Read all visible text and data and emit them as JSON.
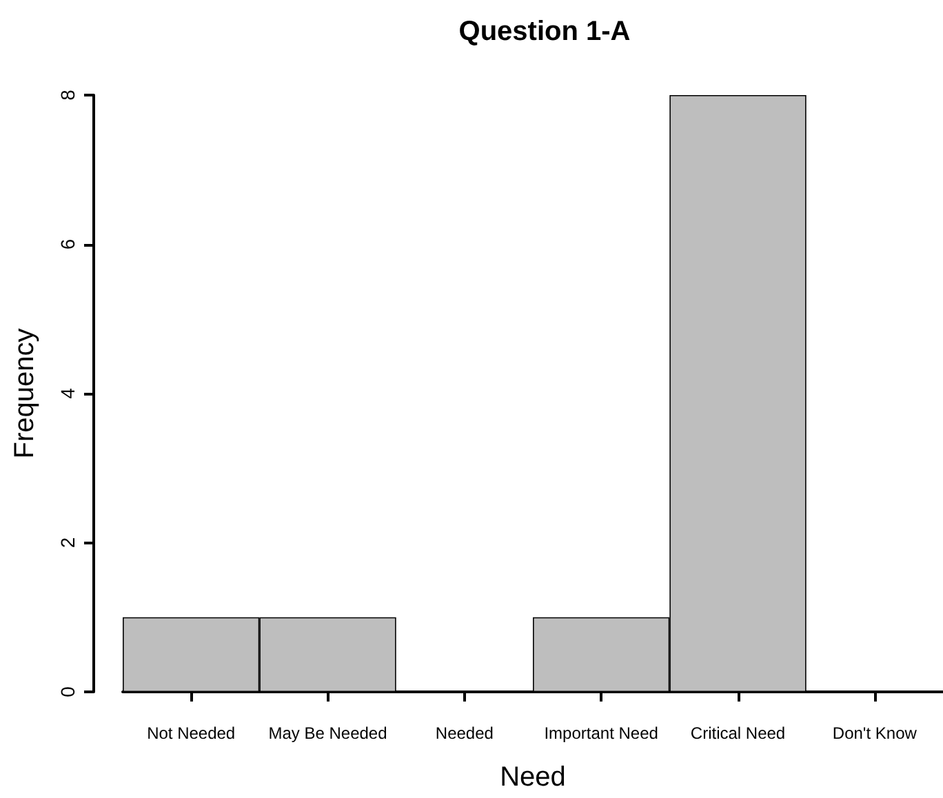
{
  "chart_data": {
    "type": "bar",
    "title": "Question 1-A",
    "xlabel": "Need",
    "ylabel": "Frequency",
    "categories": [
      "Not Needed",
      "May Be Needed",
      "Needed",
      "Important Need",
      "Critical Need",
      "Don't Know"
    ],
    "values": [
      1,
      1,
      0,
      1,
      8,
      0
    ],
    "color": "#bebebe",
    "ylim": [
      0,
      8
    ],
    "yticks": [
      0,
      2,
      4,
      6,
      8
    ],
    "grid": false
  }
}
